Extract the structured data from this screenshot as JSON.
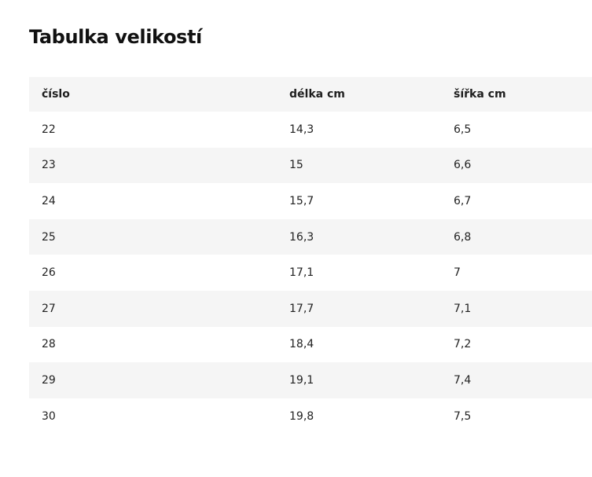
{
  "title": "Tabulka velikostí",
  "table": {
    "headers": [
      "číslo",
      "délka cm",
      "šířka cm"
    ],
    "rows": [
      [
        "22",
        "14,3",
        "6,5"
      ],
      [
        "23",
        "15",
        "6,6"
      ],
      [
        "24",
        "15,7",
        "6,7"
      ],
      [
        "25",
        "16,3",
        "6,8"
      ],
      [
        "26",
        "17,1",
        "7"
      ],
      [
        "27",
        "17,7",
        "7,1"
      ],
      [
        "28",
        "18,4",
        "7,2"
      ],
      [
        "29",
        "19,1",
        "7,4"
      ],
      [
        "30",
        "19,8",
        "7,5"
      ]
    ]
  }
}
